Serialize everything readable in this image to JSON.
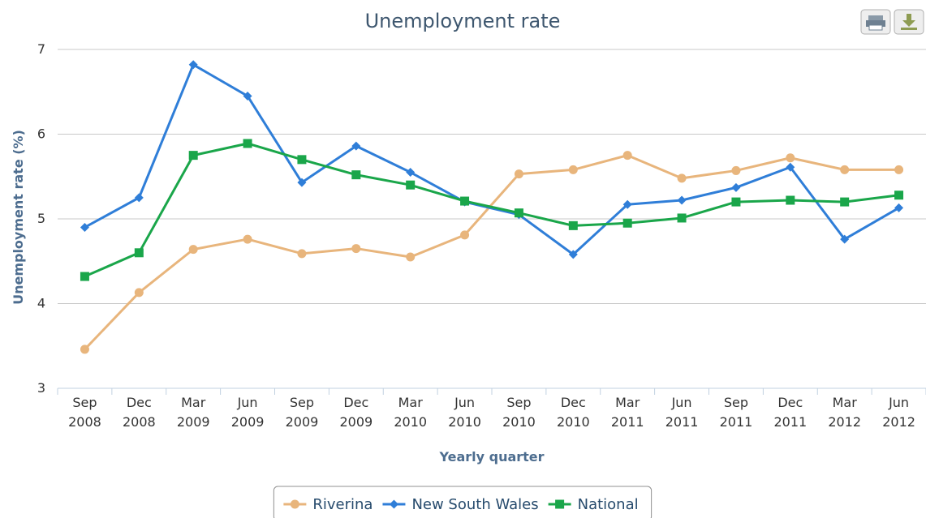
{
  "chart_data": {
    "type": "line",
    "title": "Unemployment rate",
    "xlabel": "Yearly quarter",
    "ylabel": "Unemployment rate (%)",
    "ylim": [
      3,
      7
    ],
    "yticks": [
      3,
      4,
      5,
      6,
      7
    ],
    "grid": true,
    "legend_position": "bottom-center",
    "categories": [
      [
        "Sep",
        "2008"
      ],
      [
        "Dec",
        "2008"
      ],
      [
        "Mar",
        "2009"
      ],
      [
        "Jun",
        "2009"
      ],
      [
        "Sep",
        "2009"
      ],
      [
        "Dec",
        "2009"
      ],
      [
        "Mar",
        "2010"
      ],
      [
        "Jun",
        "2010"
      ],
      [
        "Sep",
        "2010"
      ],
      [
        "Dec",
        "2010"
      ],
      [
        "Mar",
        "2011"
      ],
      [
        "Jun",
        "2011"
      ],
      [
        "Sep",
        "2011"
      ],
      [
        "Dec",
        "2011"
      ],
      [
        "Mar",
        "2012"
      ],
      [
        "Jun",
        "2012"
      ]
    ],
    "series": [
      {
        "name": "Riverina",
        "color": "#e8b57c",
        "marker": "circle",
        "values": [
          3.46,
          4.13,
          4.64,
          4.76,
          4.59,
          4.65,
          4.55,
          4.81,
          5.53,
          5.58,
          5.75,
          5.48,
          5.57,
          5.72,
          5.58,
          5.58
        ]
      },
      {
        "name": "New South Wales",
        "color": "#2f7ed8",
        "marker": "diamond",
        "values": [
          4.9,
          5.25,
          6.82,
          6.45,
          5.43,
          5.86,
          5.55,
          5.2,
          5.05,
          4.58,
          5.17,
          5.22,
          5.37,
          5.61,
          4.76,
          5.13
        ]
      },
      {
        "name": "National",
        "color": "#1aa64a",
        "marker": "square",
        "values": [
          4.32,
          4.6,
          5.75,
          5.89,
          5.7,
          5.52,
          5.4,
          5.21,
          5.07,
          4.92,
          4.95,
          5.01,
          5.2,
          5.22,
          5.2,
          5.28
        ]
      }
    ]
  },
  "toolbar": {
    "print_icon": "printer-icon",
    "download_icon": "download-icon"
  }
}
